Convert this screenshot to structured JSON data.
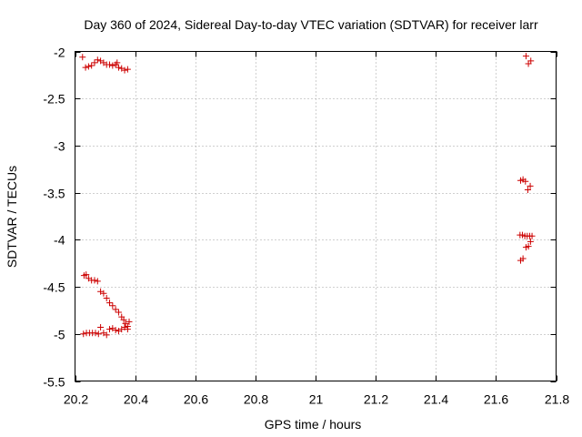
{
  "chart_data": {
    "type": "scatter",
    "title": "Day 360 of 2024, Sidereal Day-to-day VTEC variation (SDTVAR) for receiver larr",
    "xlabel": "GPS time / hours",
    "ylabel": "SDTVAR / TECUs",
    "xlim": [
      20.2,
      21.8
    ],
    "ylim": [
      -5.5,
      -2.0
    ],
    "xticks": [
      20.2,
      20.4,
      20.6,
      20.8,
      21.0,
      21.2,
      21.4,
      21.6,
      21.8
    ],
    "xtick_labels": [
      "20.2",
      "20.4",
      "20.6",
      "20.8",
      "21",
      "21.2",
      "21.4",
      "21.6",
      "21.8"
    ],
    "yticks": [
      -2.0,
      -2.5,
      -3.0,
      -3.5,
      -4.0,
      -4.5,
      -5.0,
      -5.5
    ],
    "ytick_labels": [
      "-2",
      "-2.5",
      "-3",
      "-3.5",
      "-4",
      "-4.5",
      "-5",
      "-5.5"
    ],
    "grid": true,
    "marker_color": "#cc0000",
    "series": [
      {
        "marker": "plus",
        "points": [
          [
            20.225,
            -2.06
          ],
          [
            20.235,
            -2.17
          ],
          [
            20.245,
            -2.16
          ],
          [
            20.255,
            -2.15
          ],
          [
            20.265,
            -2.12
          ],
          [
            20.275,
            -2.09
          ],
          [
            20.285,
            -2.1
          ],
          [
            20.295,
            -2.12
          ],
          [
            20.305,
            -2.14
          ],
          [
            20.315,
            -2.14
          ],
          [
            20.325,
            -2.15
          ],
          [
            20.335,
            -2.14
          ],
          [
            20.34,
            -2.12
          ],
          [
            20.345,
            -2.17
          ],
          [
            20.355,
            -2.18
          ],
          [
            20.365,
            -2.2
          ],
          [
            20.375,
            -2.19
          ],
          [
            20.23,
            -4.38
          ],
          [
            20.237,
            -4.37
          ],
          [
            20.245,
            -4.41
          ],
          [
            20.255,
            -4.43
          ],
          [
            20.265,
            -4.43
          ],
          [
            20.275,
            -4.44
          ],
          [
            20.285,
            -4.55
          ],
          [
            20.295,
            -4.57
          ],
          [
            20.305,
            -4.62
          ],
          [
            20.315,
            -4.67
          ],
          [
            20.325,
            -4.7
          ],
          [
            20.335,
            -4.74
          ],
          [
            20.345,
            -4.77
          ],
          [
            20.355,
            -4.82
          ],
          [
            20.362,
            -4.85
          ],
          [
            20.368,
            -4.89
          ],
          [
            20.375,
            -4.92
          ],
          [
            20.38,
            -4.87
          ],
          [
            20.228,
            -5.0
          ],
          [
            20.238,
            -4.99
          ],
          [
            20.248,
            -4.99
          ],
          [
            20.258,
            -4.99
          ],
          [
            20.268,
            -4.99
          ],
          [
            20.278,
            -5.0
          ],
          [
            20.285,
            -4.93
          ],
          [
            20.295,
            -4.99
          ],
          [
            20.305,
            -5.01
          ],
          [
            20.315,
            -4.95
          ],
          [
            20.325,
            -4.94
          ],
          [
            20.335,
            -4.96
          ],
          [
            20.345,
            -4.97
          ],
          [
            20.355,
            -4.95
          ],
          [
            20.365,
            -4.93
          ],
          [
            20.375,
            -4.95
          ],
          [
            21.7,
            -2.05
          ],
          [
            21.708,
            -2.13
          ],
          [
            21.716,
            -2.1
          ],
          [
            21.682,
            -3.37
          ],
          [
            21.69,
            -3.36
          ],
          [
            21.698,
            -3.38
          ],
          [
            21.706,
            -3.47
          ],
          [
            21.714,
            -3.43
          ],
          [
            21.68,
            -3.95
          ],
          [
            21.688,
            -3.95
          ],
          [
            21.696,
            -3.96
          ],
          [
            21.704,
            -3.96
          ],
          [
            21.712,
            -3.96
          ],
          [
            21.72,
            -3.96
          ],
          [
            21.715,
            -4.02
          ],
          [
            21.708,
            -4.07
          ],
          [
            21.7,
            -4.08
          ],
          [
            21.682,
            -4.22
          ],
          [
            21.69,
            -4.2
          ]
        ]
      }
    ]
  }
}
